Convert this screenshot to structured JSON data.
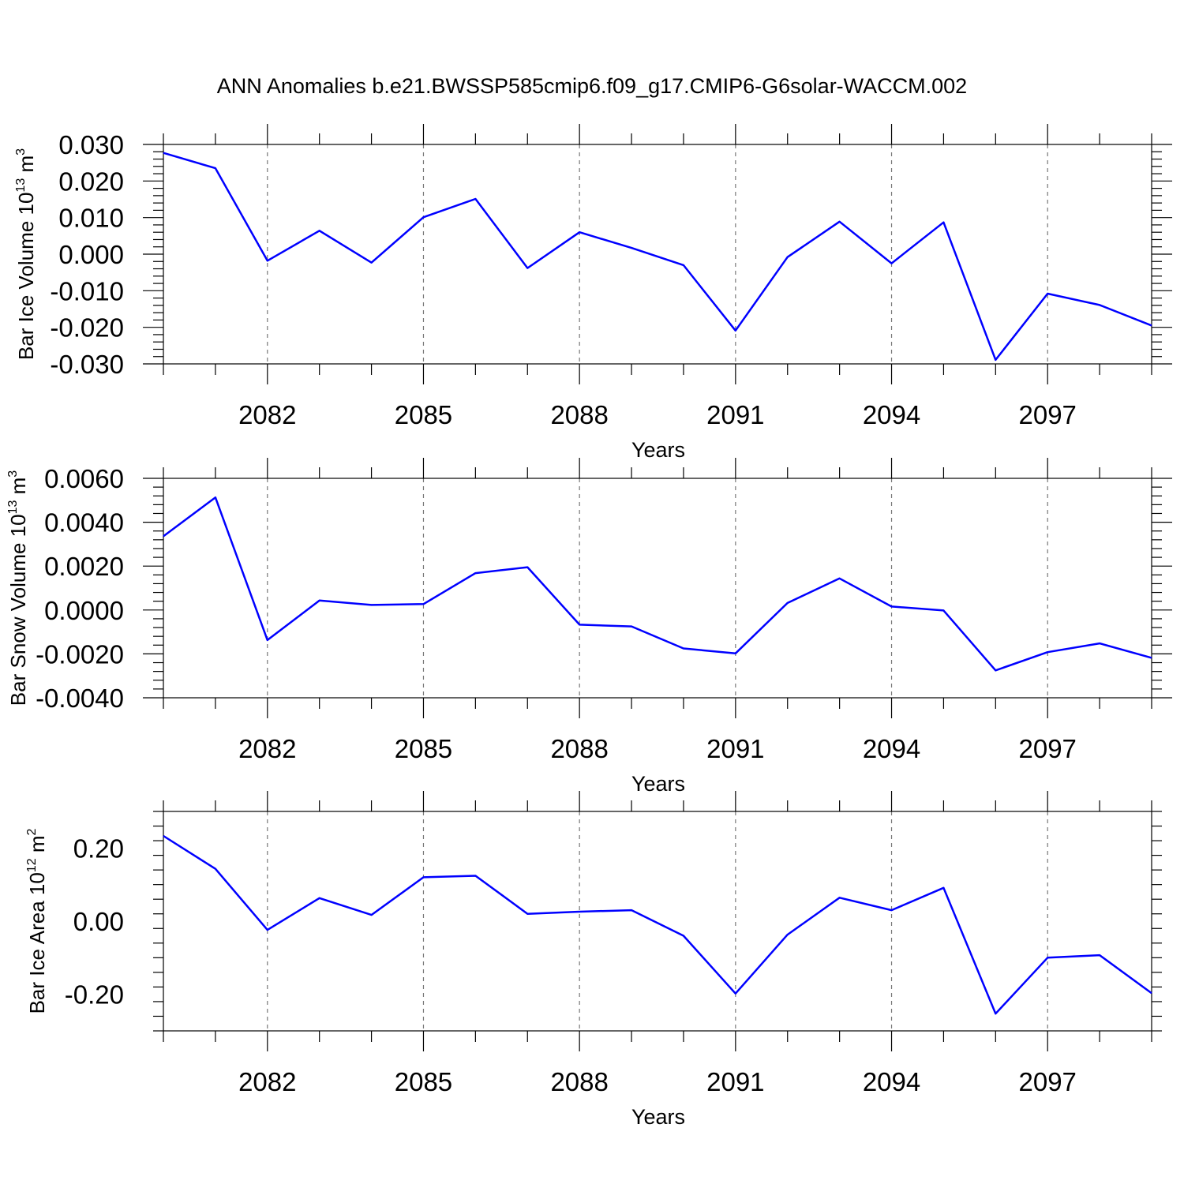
{
  "title": "ANN Anomalies b.e21.BWSSP585cmip6.f09_g17.CMIP6-G6solar-WACCM.002",
  "line_color": "#0000ff",
  "chart_data": [
    {
      "type": "line",
      "ylabel": {
        "main": "Bar Ice Volume 10",
        "exp": "13",
        "unit": " m",
        "unit_exp": "3"
      },
      "xlabel": "Years",
      "xlim": [
        2080,
        2099
      ],
      "ylim": [
        -0.03,
        0.03
      ],
      "yticks": [
        -0.03,
        -0.02,
        -0.01,
        0.0,
        0.01,
        0.02,
        0.03
      ],
      "ytick_labels": [
        "-0.030",
        "-0.020",
        "-0.010",
        "0.000",
        "0.010",
        "0.020",
        "0.030"
      ],
      "xticks": [
        2082,
        2085,
        2088,
        2091,
        2094,
        2097
      ],
      "xtick_labels": [
        "2082",
        "2085",
        "2088",
        "2091",
        "2094",
        "2097"
      ],
      "grid": "dashed vertical lines at labeled years",
      "x": [
        2080,
        2081,
        2082,
        2083,
        2084,
        2085,
        2086,
        2087,
        2088,
        2089,
        2090,
        2091,
        2092,
        2093,
        2094,
        2095,
        2096,
        2097,
        2098,
        2099
      ],
      "series": [
        {
          "values": [
            0.0277,
            0.0235,
            -0.0018,
            0.0064,
            -0.0023,
            0.0101,
            0.0151,
            -0.0038,
            0.006,
            0.0017,
            -0.003,
            -0.0209,
            -0.0008,
            0.0089,
            -0.0025,
            0.0087,
            -0.0289,
            -0.0108,
            -0.0139,
            -0.0195
          ]
        }
      ]
    },
    {
      "type": "line",
      "ylabel": {
        "main": "Bar Snow Volume 10",
        "exp": "13",
        "unit": " m",
        "unit_exp": "3"
      },
      "xlabel": "Years",
      "xlim": [
        2080,
        2099
      ],
      "ylim": [
        -0.004,
        0.006
      ],
      "yticks": [
        -0.004,
        -0.002,
        0.0,
        0.002,
        0.004,
        0.006
      ],
      "ytick_labels": [
        "-0.0040",
        "-0.0020",
        "0.0000",
        "0.0020",
        "0.0040",
        "0.0060"
      ],
      "xticks": [
        2082,
        2085,
        2088,
        2091,
        2094,
        2097
      ],
      "xtick_labels": [
        "2082",
        "2085",
        "2088",
        "2091",
        "2094",
        "2097"
      ],
      "grid": "dashed vertical lines at labeled years",
      "x": [
        2080,
        2081,
        2082,
        2083,
        2084,
        2085,
        2086,
        2087,
        2088,
        2089,
        2090,
        2091,
        2092,
        2093,
        2094,
        2095,
        2096,
        2097,
        2098,
        2099
      ],
      "series": [
        {
          "values": [
            0.00336,
            0.00513,
            -0.00137,
            0.00043,
            0.00023,
            0.00027,
            0.00168,
            0.00195,
            -0.00067,
            -0.00075,
            -0.00175,
            -0.00198,
            0.00032,
            0.00144,
            0.00016,
            -2e-05,
            -0.00275,
            -0.00192,
            -0.00152,
            -0.00218
          ]
        }
      ]
    },
    {
      "type": "line",
      "ylabel": {
        "main": "Bar Ice Area 10",
        "exp": "12",
        "unit": " m",
        "unit_exp": "2"
      },
      "xlabel": "Years",
      "xlim": [
        2080,
        2099
      ],
      "ylim": [
        -0.3,
        0.3
      ],
      "yticks": [
        -0.2,
        0.0,
        0.2
      ],
      "ytick_labels": [
        "-0.20",
        "0.00",
        "0.20"
      ],
      "xticks": [
        2082,
        2085,
        2088,
        2091,
        2094,
        2097
      ],
      "xtick_labels": [
        "2082",
        "2085",
        "2088",
        "2091",
        "2094",
        "2097"
      ],
      "grid": "dashed vertical lines at labeled years",
      "x": [
        2080,
        2081,
        2082,
        2083,
        2084,
        2085,
        2086,
        2087,
        2088,
        2089,
        2090,
        2091,
        2092,
        2093,
        2094,
        2095,
        2096,
        2097,
        2098,
        2099
      ],
      "series": [
        {
          "values": [
            0.233,
            0.143,
            -0.024,
            0.063,
            0.017,
            0.12,
            0.124,
            0.02,
            0.026,
            0.03,
            -0.04,
            -0.198,
            -0.037,
            0.064,
            0.03,
            0.091,
            -0.253,
            -0.1,
            -0.093,
            -0.197
          ]
        }
      ]
    }
  ]
}
